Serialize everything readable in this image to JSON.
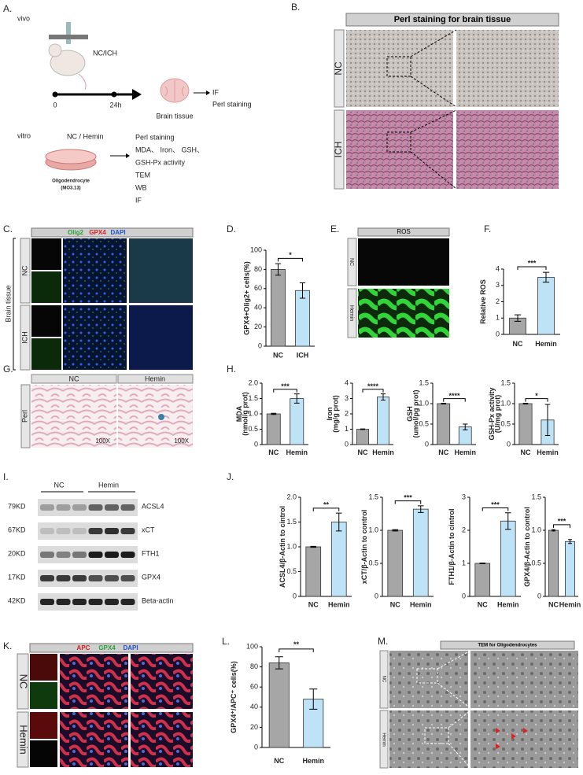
{
  "panel_labels": [
    "A.",
    "B.",
    "C.",
    "D.",
    "E.",
    "F.",
    "G.",
    "H.",
    "I.",
    "J.",
    "K.",
    "L.",
    "M."
  ],
  "panel_a": {
    "vivo_label": "vivo",
    "model": "NC/ICH",
    "timeline": [
      "0",
      "24h"
    ],
    "organ": "Brain tissue",
    "assays_vivo": [
      "IF",
      "Perl staining"
    ],
    "vitro_label": "vitro",
    "treatment": "NC / Hemin",
    "cell": "Oligodendrocyte",
    "cell_line": "(MO3.13)",
    "assays_vitro": [
      "Perl staining",
      "MDA、 Iron、 GSH、",
      "GSH-Px activity",
      "TEM",
      "WB",
      "IF"
    ]
  },
  "panel_b": {
    "title": "Perl staining for brain tissue",
    "rows": [
      "NC",
      "ICH"
    ]
  },
  "panel_c": {
    "stains": [
      "Olig2",
      "GPX4",
      "DAPI"
    ],
    "group": "Brain tissue",
    "rows": [
      "NC",
      "ICH"
    ]
  },
  "panel_e": {
    "title": "ROS",
    "rows": [
      "NC",
      "Hemin"
    ]
  },
  "panel_g": {
    "columns": [
      "NC",
      "Hemin"
    ],
    "row": "Perl",
    "scale": [
      "100X",
      "100X"
    ]
  },
  "panel_i": {
    "groups": [
      "NC",
      "Hemin"
    ],
    "sizes": [
      "79KD",
      "67KD",
      "20KD",
      "17KD",
      "42KD"
    ],
    "proteins": [
      "ACSL4",
      "xCT",
      "FTH1",
      "GPX4",
      "Beta-actin"
    ]
  },
  "panel_k": {
    "stains": [
      "APC",
      "GPX4",
      "DAPI"
    ],
    "rows": [
      "NC",
      "Hemin"
    ]
  },
  "panel_m": {
    "title": "TEM for Oligodendrocytes",
    "rows": [
      "NC",
      "Hemin"
    ]
  },
  "chart_data": [
    {
      "type": "bar",
      "ylabel": "GPX4+Olig2+ cells(%)",
      "categories": [
        "NC",
        "ICH"
      ],
      "values": [
        80,
        58
      ],
      "errors": [
        6,
        8
      ],
      "significance": "*",
      "colors": [
        "#a6a6a6",
        "#bfe3f6"
      ],
      "ylim": [
        0,
        100
      ],
      "yticks": [
        0,
        20,
        40,
        60,
        80,
        100
      ]
    },
    {
      "type": "bar",
      "ylabel": "Relative ROS",
      "categories": [
        "NC",
        "Hemin"
      ],
      "values": [
        1.0,
        3.5
      ],
      "errors": [
        0.2,
        0.3
      ],
      "significance": "***",
      "colors": [
        "#a6a6a6",
        "#bfe3f6"
      ],
      "ylim": [
        0,
        4
      ],
      "yticks": [
        0,
        1,
        2,
        3,
        4
      ]
    },
    {
      "type": "bar",
      "ylabel": [
        "MDA",
        "(nmol/g prot)"
      ],
      "categories": [
        "NC",
        "Hemin"
      ],
      "values": [
        1.0,
        1.5
      ],
      "errors": [
        0.02,
        0.15
      ],
      "significance": "***",
      "colors": [
        "#a6a6a6",
        "#bfe3f6"
      ],
      "ylim": [
        0,
        2
      ],
      "yticks": [
        0,
        0.5,
        {
          "value": 1,
          "label": "1.0"
        },
        1.5,
        {
          "value": 2,
          "label": "2.0"
        }
      ]
    },
    {
      "type": "bar",
      "ylabel": [
        "Iron",
        "(mg/g prot)"
      ],
      "categories": [
        "NC",
        "Hemin"
      ],
      "values": [
        1.0,
        3.1
      ],
      "errors": [
        0.02,
        0.2
      ],
      "significance": "****",
      "colors": [
        "#a6a6a6",
        "#bfe3f6"
      ],
      "ylim": [
        0,
        4
      ],
      "yticks": [
        0,
        1,
        2,
        3,
        4
      ]
    },
    {
      "type": "bar",
      "ylabel": [
        "GSH",
        "(umol/pg prot)"
      ],
      "categories": [
        "NC",
        "Hemin"
      ],
      "values": [
        1.0,
        0.43
      ],
      "errors": [
        0.01,
        0.07
      ],
      "significance": "****",
      "colors": [
        "#a6a6a6",
        "#bfe3f6"
      ],
      "ylim": [
        0,
        1.5
      ],
      "yticks": [
        0,
        0.5,
        {
          "value": 1,
          "label": "1.0"
        },
        1.5
      ]
    },
    {
      "type": "bar",
      "ylabel": [
        "GSH-Px activity",
        "(U/mg prot)"
      ],
      "categories": [
        "NC",
        "Hemin"
      ],
      "values": [
        1.0,
        0.6
      ],
      "errors": [
        0.01,
        0.38
      ],
      "significance": "*",
      "colors": [
        "#a6a6a6",
        "#bfe3f6"
      ],
      "ylim": [
        0,
        1.5
      ],
      "yticks": [
        0,
        0.5,
        {
          "value": 1,
          "label": "1.0"
        },
        1.5
      ]
    },
    {
      "type": "bar",
      "ylabel": "ACSL4/β-Actin to cintrol",
      "categories": [
        "NC",
        "Hemin"
      ],
      "values": [
        1.0,
        1.5
      ],
      "errors": [
        0.01,
        0.18
      ],
      "significance": "**",
      "colors": [
        "#a6a6a6",
        "#bfe3f6"
      ],
      "ylim": [
        0,
        2
      ],
      "yticks": [
        0,
        0.5,
        {
          "value": 1,
          "label": "1.0"
        },
        1.5,
        {
          "value": 2,
          "label": "2.0"
        }
      ]
    },
    {
      "type": "bar",
      "ylabel": "xCT/β-Actin to control",
      "categories": [
        "NC",
        "Hemin"
      ],
      "values": [
        1.0,
        1.32
      ],
      "errors": [
        0.01,
        0.05
      ],
      "significance": "***",
      "colors": [
        "#a6a6a6",
        "#bfe3f6"
      ],
      "ylim": [
        0,
        1.5
      ],
      "yticks": [
        0,
        0.5,
        {
          "value": 1,
          "label": "1.0"
        },
        1.5
      ]
    },
    {
      "type": "bar",
      "ylabel": "FTH1/β-Actin to cintrol",
      "categories": [
        "NC",
        "Hemin"
      ],
      "values": [
        1.0,
        2.28
      ],
      "errors": [
        0.01,
        0.25
      ],
      "significance": "***",
      "colors": [
        "#a6a6a6",
        "#bfe3f6"
      ],
      "ylim": [
        0,
        3
      ],
      "yticks": [
        0,
        1,
        2,
        3
      ]
    },
    {
      "type": "bar",
      "ylabel": "GPX4/β-Actin to control",
      "categories": [
        "NC",
        "Hemin"
      ],
      "values": [
        1.0,
        0.83
      ],
      "errors": [
        0.01,
        0.03
      ],
      "significance": "***",
      "colors": [
        "#a6a6a6",
        "#bfe3f6"
      ],
      "ylim": [
        0,
        1.5
      ],
      "yticks": [
        0,
        0.5,
        {
          "value": 1,
          "label": "1.0"
        },
        1.5
      ]
    },
    {
      "type": "bar",
      "ylabel": "GPX4⁺/APC⁺ cells(%)",
      "categories": [
        "NC",
        "Hemin"
      ],
      "values": [
        84,
        48
      ],
      "errors": [
        6,
        10
      ],
      "significance": "**",
      "colors": [
        "#a6a6a6",
        "#bfe3f6"
      ],
      "ylim": [
        0,
        100
      ],
      "yticks": [
        0,
        20,
        40,
        60,
        80,
        100
      ]
    }
  ]
}
